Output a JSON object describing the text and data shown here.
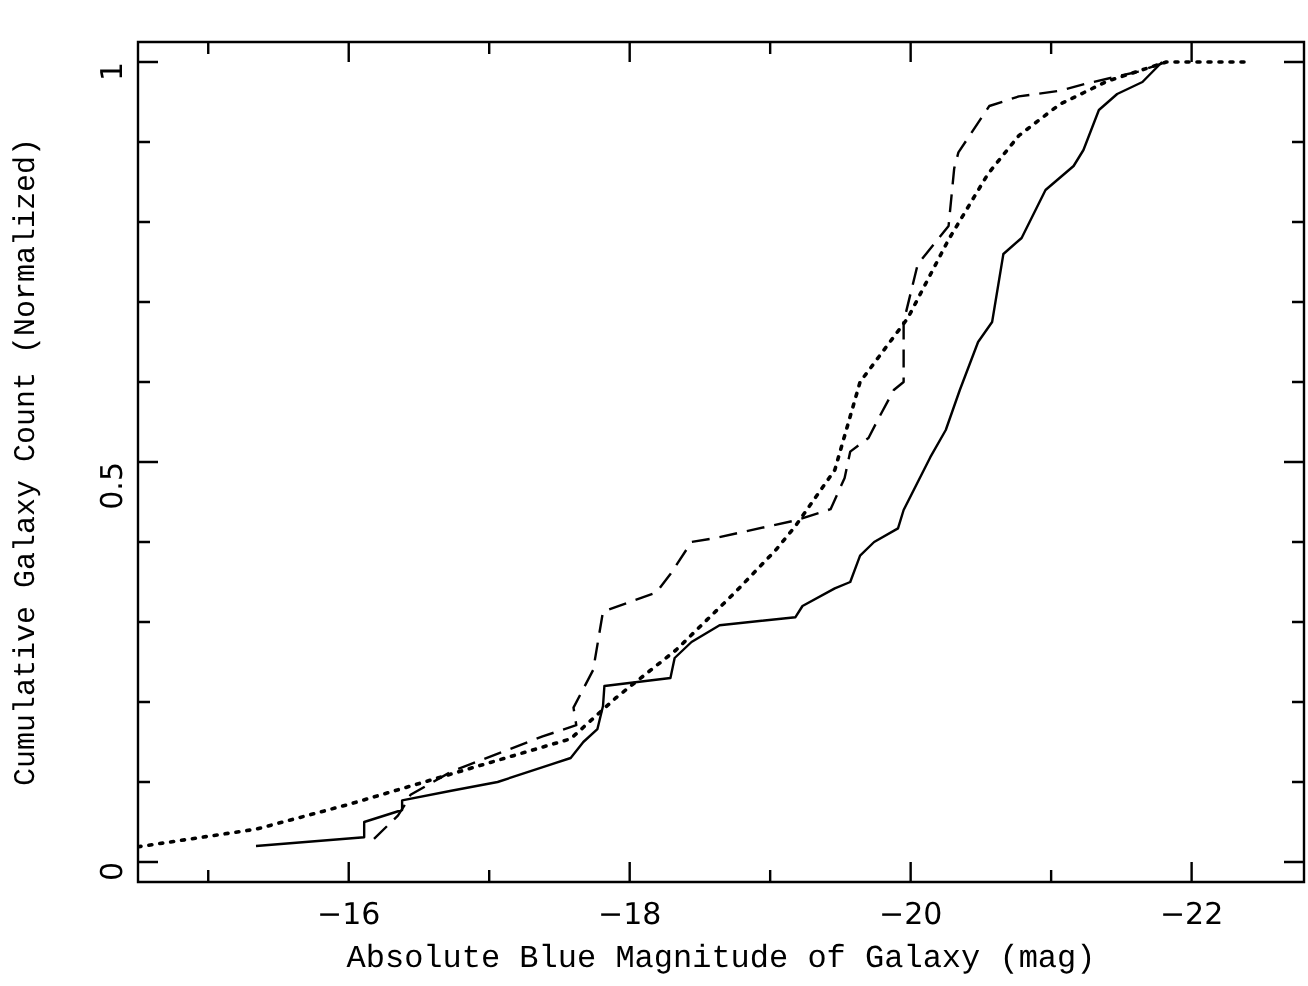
{
  "chart_data": {
    "type": "line",
    "xlabel": "Absolute Blue Magnitude of Galaxy (mag)",
    "ylabel": "Cumulative Galaxy Count (Normalized)",
    "xlim": [
      -14.5,
      -22.8
    ],
    "ylim": [
      -0.025,
      1.025
    ],
    "xticks": [
      {
        "value": -15,
        "label": null
      },
      {
        "value": -16,
        "label": "−16"
      },
      {
        "value": -17,
        "label": null
      },
      {
        "value": -18,
        "label": "−18"
      },
      {
        "value": -19,
        "label": null
      },
      {
        "value": -20,
        "label": "−20"
      },
      {
        "value": -21,
        "label": null
      },
      {
        "value": -22,
        "label": "−22"
      }
    ],
    "yticks": [
      0,
      {
        "value": 0.1,
        "label": null
      },
      {
        "value": 0.2,
        "label": null
      },
      {
        "value": 0.3,
        "label": null
      },
      {
        "value": 0.4,
        "label": null
      },
      0.5,
      {
        "value": 0.6,
        "label": null
      },
      {
        "value": 0.7,
        "label": null
      },
      {
        "value": 0.8,
        "label": null
      },
      {
        "value": 0.9,
        "label": null
      },
      1
    ],
    "marker": "none",
    "series": [
      {
        "color": "#000000",
        "line_style": "solid",
        "x": [
          -15.34,
          -16.11,
          -16.11,
          -16.38,
          -16.38,
          -16.73,
          -17.06,
          -17.58,
          -17.67,
          -17.77,
          -17.81,
          -17.82,
          -18.29,
          -18.32,
          -18.44,
          -18.64,
          -19.18,
          -19.23,
          -19.46,
          -19.57,
          -19.64,
          -19.74,
          -19.91,
          -19.95,
          -20.14,
          -20.25,
          -20.35,
          -20.48,
          -20.58,
          -20.66,
          -20.79,
          -20.96,
          -21.16,
          -21.23,
          -21.34,
          -21.47,
          -21.65,
          -21.79
        ],
        "values": [
          0.02,
          0.031,
          0.05,
          0.065,
          0.077,
          0.089,
          0.1,
          0.13,
          0.15,
          0.166,
          0.195,
          0.22,
          0.23,
          0.255,
          0.275,
          0.296,
          0.306,
          0.32,
          0.342,
          0.35,
          0.383,
          0.4,
          0.417,
          0.44,
          0.506,
          0.54,
          0.59,
          0.65,
          0.675,
          0.76,
          0.78,
          0.84,
          0.87,
          0.89,
          0.94,
          0.96,
          0.975,
          1.0
        ]
      },
      {
        "color": "#000000",
        "line_style": "dashed",
        "x": [
          -16.18,
          -16.35,
          -16.42,
          -16.44,
          -16.73,
          -17.38,
          -17.62,
          -17.6,
          -17.74,
          -17.81,
          -18.19,
          -18.29,
          -18.44,
          -18.61,
          -19.18,
          -19.43,
          -19.53,
          -19.57,
          -19.7,
          -19.77,
          -19.88,
          -19.95,
          -19.95,
          -20.05,
          -20.27,
          -20.31,
          -20.34,
          -20.56,
          -20.77,
          -21.06,
          -21.25,
          -21.62,
          -21.82
        ],
        "values": [
          0.029,
          0.058,
          0.077,
          0.084,
          0.113,
          0.157,
          0.171,
          0.193,
          0.24,
          0.313,
          0.337,
          0.36,
          0.4,
          0.405,
          0.427,
          0.441,
          0.48,
          0.513,
          0.53,
          0.554,
          0.59,
          0.6,
          0.675,
          0.747,
          0.795,
          0.867,
          0.887,
          0.945,
          0.957,
          0.964,
          0.973,
          0.988,
          1.0
        ]
      },
      {
        "color": "#000000",
        "line_style": "dotted",
        "x": [
          -14.5,
          -15.34,
          -16.0,
          -16.73,
          -17.58,
          -17.9,
          -18.33,
          -18.75,
          -19.04,
          -19.18,
          -19.46,
          -19.64,
          -19.98,
          -20.27,
          -20.55,
          -20.77,
          -21.06,
          -21.4,
          -21.82,
          -22.42
        ],
        "values": [
          0.019,
          0.041,
          0.072,
          0.11,
          0.154,
          0.205,
          0.265,
          0.337,
          0.39,
          0.42,
          0.49,
          0.6,
          0.68,
          0.778,
          0.86,
          0.908,
          0.947,
          0.976,
          1.0,
          1.0
        ]
      }
    ]
  }
}
